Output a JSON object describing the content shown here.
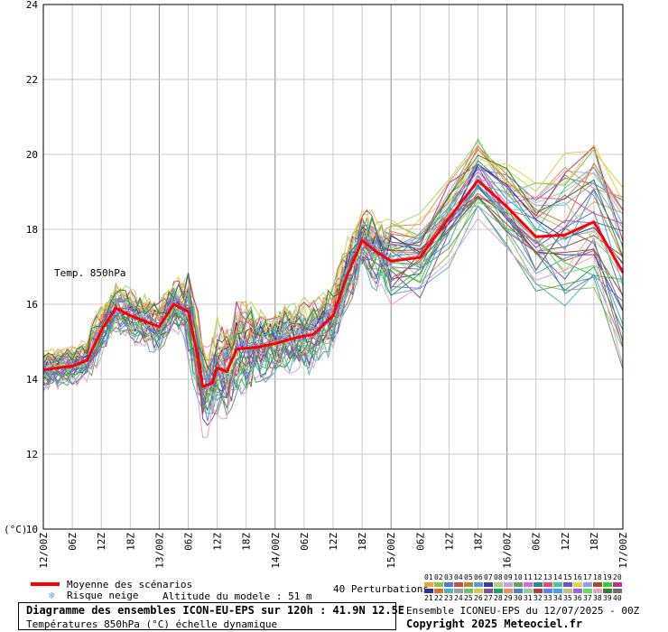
{
  "chart_data": {
    "type": "line",
    "title": "Diagramme des ensembles ICON-EU-EPS sur 120h : 41.9N 12.5E",
    "subtitle": "Températures 850hPa (°C) échelle dynamique",
    "ylabel": "(°C)",
    "annotation": "Temp. 850hPa",
    "ylim": [
      10,
      24
    ],
    "y_ticks": [
      10,
      12,
      14,
      16,
      18,
      20,
      22,
      24
    ],
    "x_ticks": [
      "12/00Z",
      "06Z",
      "12Z",
      "18Z",
      "13/00Z",
      "06Z",
      "12Z",
      "18Z",
      "14/00Z",
      "06Z",
      "12Z",
      "18Z",
      "15/00Z",
      "06Z",
      "12Z",
      "18Z",
      "16/00Z",
      "06Z",
      "12Z",
      "18Z",
      "17/00Z"
    ],
    "x_hours": [
      0,
      6,
      12,
      18,
      24,
      30,
      36,
      42,
      48,
      54,
      60,
      66,
      72,
      78,
      84,
      90,
      96,
      102,
      108,
      114,
      120
    ],
    "mean_series": {
      "name": "Moyenne des scénarios",
      "color": "#ff0000",
      "points": [
        [
          0,
          14.25
        ],
        [
          3,
          14.3
        ],
        [
          6,
          14.35
        ],
        [
          9,
          14.5
        ],
        [
          12,
          15.3
        ],
        [
          15,
          15.9
        ],
        [
          18,
          15.7
        ],
        [
          21,
          15.55
        ],
        [
          24,
          15.4
        ],
        [
          27,
          16.0
        ],
        [
          30,
          15.8
        ],
        [
          32,
          14.6
        ],
        [
          33,
          13.8
        ],
        [
          35,
          13.9
        ],
        [
          36,
          14.3
        ],
        [
          38,
          14.2
        ],
        [
          40,
          14.8
        ],
        [
          44,
          14.85
        ],
        [
          48,
          14.95
        ],
        [
          52,
          15.1
        ],
        [
          54,
          15.15
        ],
        [
          56,
          15.2
        ],
        [
          60,
          15.7
        ],
        [
          63,
          16.8
        ],
        [
          66,
          17.7
        ],
        [
          69,
          17.4
        ],
        [
          72,
          17.15
        ],
        [
          75,
          17.2
        ],
        [
          78,
          17.25
        ],
        [
          84,
          18.3
        ],
        [
          90,
          19.3
        ],
        [
          96,
          18.6
        ],
        [
          102,
          17.8
        ],
        [
          108,
          17.85
        ],
        [
          114,
          18.2
        ],
        [
          120,
          16.85
        ]
      ]
    },
    "legend": {
      "mean_label": "Moyenne des scénarios",
      "snow_label": "Risque neige",
      "altitude_label": "Altitude du modele : 51 m",
      "perturbations_label": "40 Perturbations",
      "member_numbers_row1": [
        "01",
        "02",
        "03",
        "04",
        "05",
        "06",
        "07",
        "08",
        "09",
        "10",
        "11",
        "12",
        "13",
        "14",
        "15",
        "16",
        "17",
        "18",
        "19",
        "20"
      ],
      "member_numbers_row2": [
        "21",
        "22",
        "23",
        "24",
        "25",
        "26",
        "27",
        "28",
        "29",
        "30",
        "31",
        "32",
        "33",
        "34",
        "35",
        "36",
        "37",
        "38",
        "39",
        "40"
      ]
    },
    "member_colors": [
      "#e6a83c",
      "#8ec04b",
      "#4b7ad6",
      "#c84f3a",
      "#b48a2e",
      "#55a0c8",
      "#3c3ca0",
      "#a8d870",
      "#c8a0d8",
      "#60a060",
      "#d86ad8",
      "#2e8a8a",
      "#e04b7a",
      "#40c8a0",
      "#7050c8",
      "#f0d040",
      "#90a0f0",
      "#a05020",
      "#38c838",
      "#c03090",
      "#303090",
      "#e07030",
      "#50b0d0",
      "#a0a0a0",
      "#70c070",
      "#d0d050",
      "#8050a0",
      "#20a060",
      "#f09050",
      "#5080c0",
      "#90d0a0",
      "#b04040",
      "#6080f0",
      "#40a0f0",
      "#c0c080",
      "#a060e0",
      "#60e060",
      "#f0a0c0",
      "#308030",
      "#707070"
    ],
    "footer": {
      "ensemble_label": "Ensemble ICONEU-EPS du 12/07/2025 - 00Z",
      "copyright": "Copyright 2025 Meteociel.fr"
    }
  }
}
